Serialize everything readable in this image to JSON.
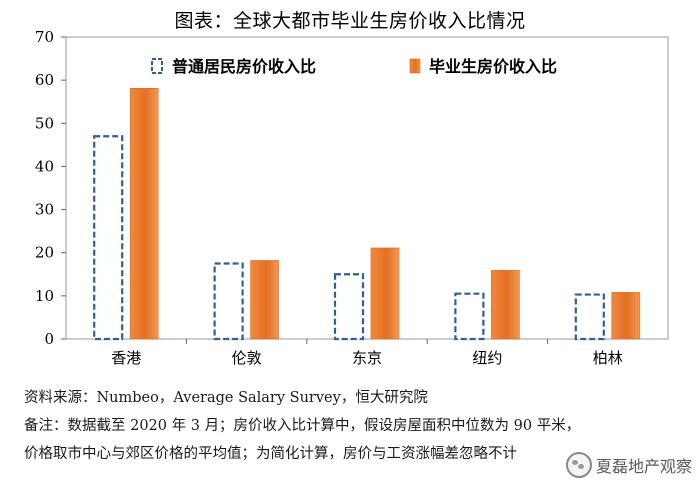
{
  "page": {
    "title": "图表：全球大都市毕业生房价收入比情况",
    "source": "资料来源：Numbeo，Average Salary Survey，恒大研究院",
    "note_line1": "备注：数据截至 2020 年 3 月；房价收入比计算中，假设房屋面积中位数为 90 平米，",
    "note_line2": "价格取市中心与郊区价格的平均值；为简化计算，房价与工资涨幅差忽略不计",
    "watermark": "夏磊地产观察",
    "watermark_icon": "wechat-icon"
  },
  "chart_data": {
    "type": "bar",
    "title": "图表：全球大都市毕业生房价收入比情况",
    "categories": [
      "香港",
      "伦敦",
      "东京",
      "纽约",
      "柏林"
    ],
    "series": [
      {
        "name": "普通居民房价收入比",
        "values": [
          47,
          17.5,
          15,
          10.5,
          10.3
        ],
        "style": "dashed-outline",
        "color": "#2e5f9a"
      },
      {
        "name": "毕业生房价收入比",
        "values": [
          58.1,
          18.2,
          21.1,
          15.9,
          10.8
        ],
        "style": "solid-gradient",
        "color": "#e8772e"
      }
    ],
    "ylim": [
      0,
      70
    ],
    "yticks": [
      "0",
      "10",
      "20",
      "30",
      "40",
      "50",
      "60",
      "70"
    ],
    "grid": false,
    "legend_position": "top-center",
    "plot_background": "#ffffff"
  }
}
